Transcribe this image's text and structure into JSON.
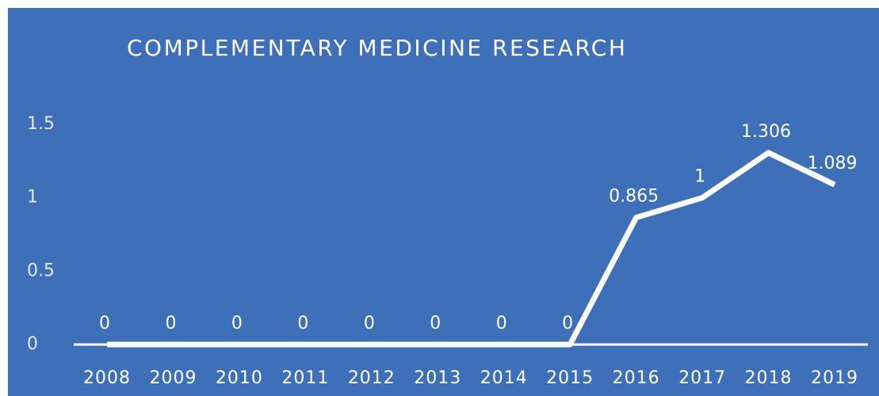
{
  "chart_data": {
    "type": "line",
    "title": "COMPLEMENTARY MEDICINE RESEARCH",
    "categories": [
      "2008",
      "2009",
      "2010",
      "2011",
      "2012",
      "2013",
      "2014",
      "2015",
      "2016",
      "2017",
      "2018",
      "2019"
    ],
    "series": [
      {
        "name": "Complementary Medicine Research",
        "color": "#ffffff",
        "values": [
          0,
          0,
          0,
          0,
          0,
          0,
          0,
          0,
          0.865,
          1,
          1.306,
          1.089
        ]
      }
    ],
    "ylim": [
      0,
      1.5
    ],
    "yticks": [
      0,
      0.5,
      1,
      1.5
    ],
    "grid": false
  }
}
